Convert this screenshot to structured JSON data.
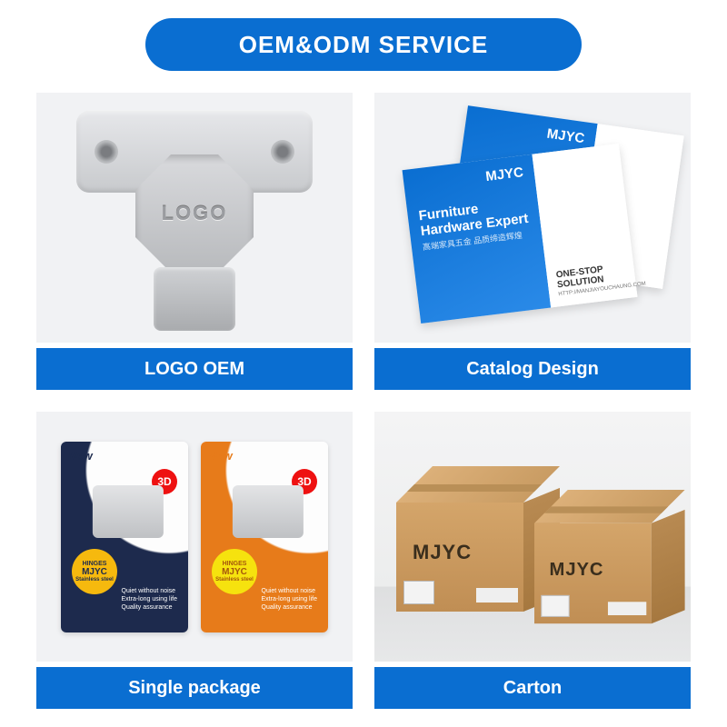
{
  "colors": {
    "brand_blue": "#0a6ed1",
    "white": "#ffffff",
    "card_bg": "#f1f2f4",
    "pkg_navy": "#1d2a4d",
    "pkg_orange": "#e77b1a",
    "badge_yellow": "#f6b90e",
    "carton": "#c89b63"
  },
  "header": {
    "title": "OEM&ODM SERVICE"
  },
  "cards": {
    "logo_oem": {
      "label": "LOGO OEM",
      "stamp_text": "LOGO"
    },
    "catalog": {
      "label": "Catalog Design",
      "brand": "MJYC",
      "title_line1": "Furniture",
      "title_line2": "Hardware Expert",
      "subtitle": "高端家具五金 品质缔造辉煌",
      "solution": "ONE-STOP SOLUTION",
      "url": "HTTP://MANJIAYOUCHAUNG.COM"
    },
    "single_package": {
      "label": "Single package",
      "new_tag": "New",
      "badge_3d": "3D",
      "badge_top": "HINGES",
      "badge_mid": "MJYC",
      "badge_bottom": "Stainless steel",
      "feature1": "Quiet without noise",
      "feature2": "Extra-long using life",
      "feature3": "Quality assurance"
    },
    "carton": {
      "label": "Carton",
      "brand": "MJYC"
    }
  }
}
